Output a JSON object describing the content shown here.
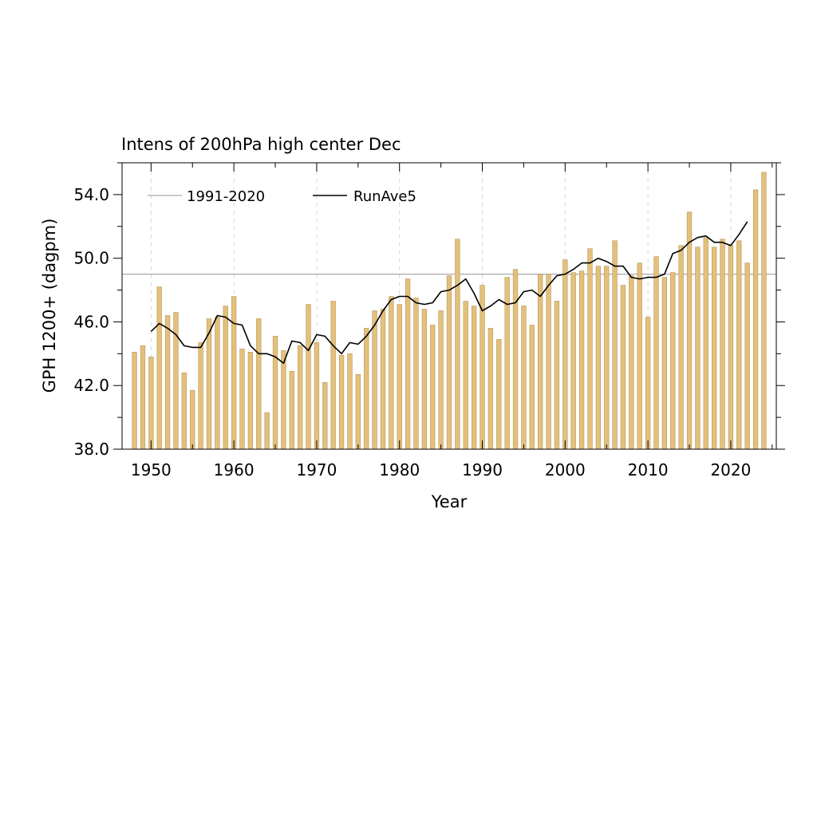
{
  "chart_data": {
    "type": "bar",
    "title": "Intens of 200hPa high center Dec",
    "xlabel": "Year",
    "ylabel": "GPH 1200+ (dagpm)",
    "xlim": [
      1946.5,
      2025.5
    ],
    "ylim": [
      38.0,
      56.0
    ],
    "xticks": [
      1950,
      1960,
      1970,
      1980,
      1990,
      2000,
      2010,
      2020
    ],
    "xtick_labels": [
      "1950",
      "1960",
      "1970",
      "1980",
      "1990",
      "2000",
      "2010",
      "2020"
    ],
    "yticks": [
      38.0,
      42.0,
      46.0,
      50.0,
      54.0
    ],
    "ytick_labels": [
      "38.0",
      "42.0",
      "46.0",
      "50.0",
      "54.0"
    ],
    "grid": "vertical dashed at major x ticks",
    "legend_position": "top-left",
    "colors": {
      "bar_fill": "#E3C07C",
      "bar_edge": "#B8985A",
      "climatology_line": "#AAAAAA",
      "running_mean_line": "#000000",
      "grid": "#CCCCCC"
    },
    "bars": {
      "name": "",
      "x": [
        1948,
        1949,
        1950,
        1951,
        1952,
        1953,
        1954,
        1955,
        1956,
        1957,
        1958,
        1959,
        1960,
        1961,
        1962,
        1963,
        1964,
        1965,
        1966,
        1967,
        1968,
        1969,
        1970,
        1971,
        1972,
        1973,
        1974,
        1975,
        1976,
        1977,
        1978,
        1979,
        1980,
        1981,
        1982,
        1983,
        1984,
        1985,
        1986,
        1987,
        1988,
        1989,
        1990,
        1991,
        1992,
        1993,
        1994,
        1995,
        1996,
        1997,
        1998,
        1999,
        2000,
        2001,
        2002,
        2003,
        2004,
        2005,
        2006,
        2007,
        2008,
        2009,
        2010,
        2011,
        2012,
        2013,
        2014,
        2015,
        2016,
        2017,
        2018,
        2019,
        2020,
        2021,
        2022,
        2023,
        2024
      ],
      "values": [
        44.1,
        44.5,
        43.8,
        48.2,
        46.4,
        46.6,
        42.8,
        41.7,
        44.7,
        46.2,
        46.3,
        47.0,
        47.6,
        44.3,
        44.1,
        46.2,
        40.3,
        45.1,
        44.2,
        42.9,
        44.5,
        47.1,
        44.7,
        42.2,
        47.3,
        43.9,
        44.0,
        42.7,
        45.6,
        46.7,
        46.8,
        47.6,
        47.1,
        48.7,
        47.5,
        46.8,
        45.8,
        46.7,
        48.9,
        51.2,
        47.3,
        47.0,
        48.3,
        45.6,
        44.9,
        48.8,
        49.3,
        47.0,
        45.8,
        49.0,
        49.0,
        47.3,
        49.9,
        49.1,
        49.2,
        50.6,
        49.5,
        49.5,
        51.1,
        48.3,
        48.9,
        49.7,
        46.3,
        50.1,
        48.8,
        49.1,
        50.8,
        52.9,
        50.7,
        51.3,
        50.7,
        51.2,
        50.8,
        51.1,
        49.7,
        54.3,
        55.4
      ]
    },
    "series": [
      {
        "name": "1991-2020",
        "type": "line",
        "x": [
          1946.5,
          2025.5
        ],
        "values": [
          49.0,
          49.0
        ]
      },
      {
        "name": "RunAve5",
        "type": "line",
        "x": [
          1950,
          1951,
          1952,
          1953,
          1954,
          1955,
          1956,
          1957,
          1958,
          1959,
          1960,
          1961,
          1962,
          1963,
          1964,
          1965,
          1966,
          1967,
          1968,
          1969,
          1970,
          1971,
          1972,
          1973,
          1974,
          1975,
          1976,
          1977,
          1978,
          1979,
          1980,
          1981,
          1982,
          1983,
          1984,
          1985,
          1986,
          1987,
          1988,
          1989,
          1990,
          1991,
          1992,
          1993,
          1994,
          1995,
          1996,
          1997,
          1998,
          1999,
          2000,
          2001,
          2002,
          2003,
          2004,
          2005,
          2006,
          2007,
          2008,
          2009,
          2010,
          2011,
          2012,
          2013,
          2014,
          2015,
          2016,
          2017,
          2018,
          2019,
          2020,
          2021,
          2022
        ],
        "values": [
          45.4,
          45.9,
          45.6,
          45.2,
          44.5,
          44.4,
          44.4,
          45.3,
          46.4,
          46.3,
          45.9,
          45.8,
          44.5,
          44.0,
          44.0,
          43.8,
          43.4,
          44.8,
          44.7,
          44.2,
          45.2,
          45.1,
          44.5,
          44.0,
          44.7,
          44.6,
          45.1,
          45.8,
          46.7,
          47.4,
          47.6,
          47.6,
          47.2,
          47.1,
          47.2,
          47.9,
          48.0,
          48.3,
          48.7,
          47.8,
          46.7,
          47.0,
          47.4,
          47.1,
          47.2,
          47.9,
          48.0,
          47.6,
          48.3,
          48.9,
          49.0,
          49.3,
          49.7,
          49.7,
          50.0,
          49.8,
          49.5,
          49.5,
          48.8,
          48.7,
          48.8,
          48.8,
          49.0,
          50.3,
          50.5,
          51.0,
          51.3,
          51.4,
          51.0,
          51.0,
          50.8,
          51.5,
          52.3
        ]
      }
    ]
  }
}
